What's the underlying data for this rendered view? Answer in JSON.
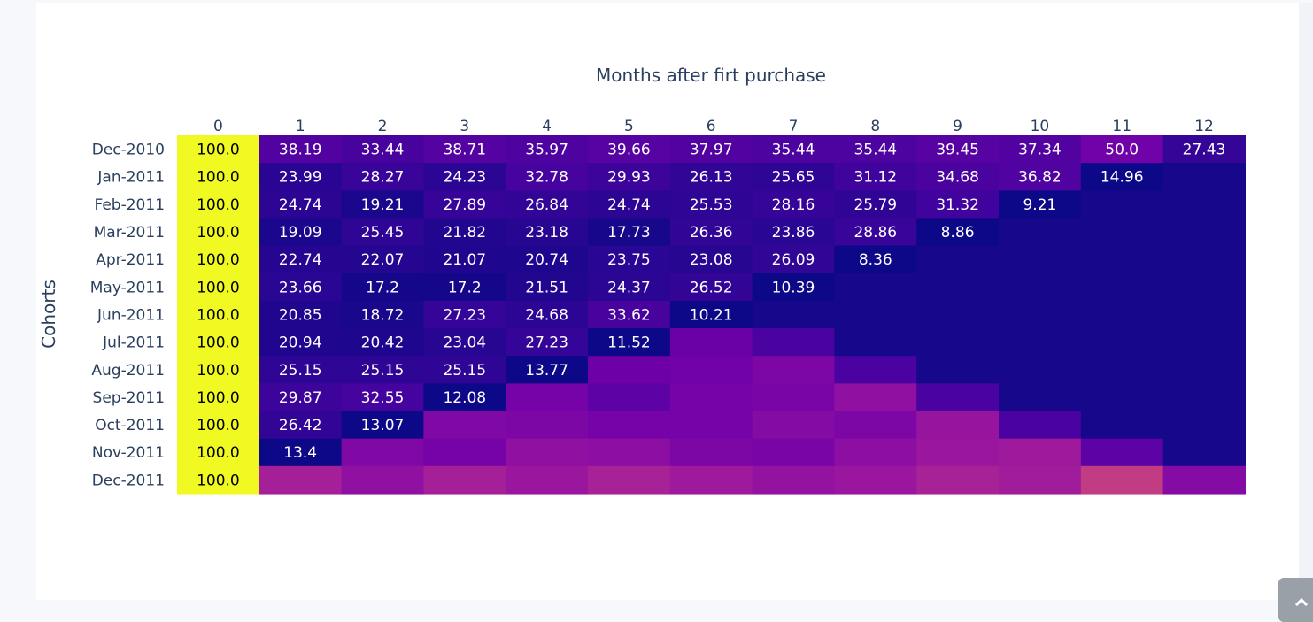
{
  "chart_data": {
    "type": "heatmap",
    "title": "Months after firt purchase",
    "xlabel": "",
    "ylabel": "Cohorts",
    "x": [
      "0",
      "1",
      "2",
      "3",
      "4",
      "5",
      "6",
      "7",
      "8",
      "9",
      "10",
      "11",
      "12"
    ],
    "y": [
      "Dec-2010",
      "Jan-2011",
      "Feb-2011",
      "Mar-2011",
      "Apr-2011",
      "May-2011",
      "Jun-2011",
      "Jul-2011",
      "Aug-2011",
      "Sep-2011",
      "Oct-2011",
      "Nov-2011",
      "Dec-2011"
    ],
    "colorscale": "plasma",
    "zrange": [
      0,
      100
    ],
    "z": [
      [
        100.0,
        38.19,
        33.44,
        38.71,
        35.97,
        39.66,
        37.97,
        35.44,
        35.44,
        39.45,
        37.34,
        50.0,
        27.43
      ],
      [
        100.0,
        23.99,
        28.27,
        24.23,
        32.78,
        29.93,
        26.13,
        25.65,
        31.12,
        34.68,
        36.82,
        14.96,
        null
      ],
      [
        100.0,
        24.74,
        19.21,
        27.89,
        26.84,
        24.74,
        25.53,
        28.16,
        25.79,
        31.32,
        9.21,
        null,
        null
      ],
      [
        100.0,
        19.09,
        25.45,
        21.82,
        23.18,
        17.73,
        26.36,
        23.86,
        28.86,
        8.86,
        null,
        null,
        null
      ],
      [
        100.0,
        22.74,
        22.07,
        21.07,
        20.74,
        23.75,
        23.08,
        26.09,
        8.36,
        null,
        null,
        null,
        null
      ],
      [
        100.0,
        23.66,
        17.2,
        17.2,
        21.51,
        24.37,
        26.52,
        10.39,
        null,
        null,
        null,
        null,
        null
      ],
      [
        100.0,
        20.85,
        18.72,
        27.23,
        24.68,
        33.62,
        10.21,
        null,
        null,
        null,
        null,
        null,
        null
      ],
      [
        100.0,
        20.94,
        20.42,
        23.04,
        27.23,
        11.52,
        null,
        null,
        null,
        null,
        null,
        null,
        null
      ],
      [
        100.0,
        25.15,
        25.15,
        25.15,
        13.77,
        null,
        null,
        null,
        null,
        null,
        null,
        null,
        null
      ],
      [
        100.0,
        29.87,
        32.55,
        12.08,
        null,
        null,
        null,
        null,
        null,
        null,
        null,
        null,
        null
      ],
      [
        100.0,
        26.42,
        13.07,
        null,
        null,
        null,
        null,
        null,
        null,
        null,
        null,
        null,
        null
      ],
      [
        100.0,
        13.4,
        null,
        null,
        null,
        null,
        null,
        null,
        null,
        null,
        null,
        null,
        null
      ],
      [
        100.0,
        null,
        null,
        null,
        null,
        null,
        null,
        null,
        null,
        null,
        null,
        null,
        null
      ]
    ],
    "empty_cell_levels": [
      [
        null,
        null,
        null,
        null,
        null,
        null,
        null,
        null,
        null,
        null,
        null,
        null,
        null
      ],
      [
        null,
        null,
        null,
        null,
        null,
        null,
        null,
        null,
        null,
        null,
        null,
        null,
        0.02
      ],
      [
        null,
        null,
        null,
        null,
        null,
        null,
        null,
        null,
        null,
        null,
        null,
        0.02,
        0.02
      ],
      [
        null,
        null,
        null,
        null,
        null,
        null,
        null,
        null,
        null,
        null,
        0.02,
        0.02,
        0.02
      ],
      [
        null,
        null,
        null,
        null,
        null,
        null,
        null,
        null,
        null,
        0.02,
        0.02,
        0.02,
        0.02
      ],
      [
        null,
        null,
        null,
        null,
        null,
        null,
        null,
        null,
        0.02,
        0.02,
        0.02,
        0.02,
        0.02
      ],
      [
        null,
        null,
        null,
        null,
        null,
        null,
        null,
        0.02,
        0.02,
        0.02,
        0.02,
        0.02,
        0.02
      ],
      [
        null,
        null,
        null,
        null,
        null,
        null,
        0.2,
        0.12,
        0.02,
        0.02,
        0.02,
        0.02,
        0.02
      ],
      [
        null,
        null,
        null,
        null,
        null,
        0.21,
        0.22,
        0.25,
        0.12,
        0.02,
        0.02,
        0.02,
        0.02
      ],
      [
        null,
        null,
        null,
        null,
        0.23,
        0.17,
        0.23,
        0.24,
        0.3,
        0.12,
        0.02,
        0.02,
        0.02
      ],
      [
        null,
        null,
        null,
        0.26,
        0.25,
        0.23,
        0.23,
        0.27,
        0.25,
        0.32,
        0.12,
        0.02,
        0.02
      ],
      [
        null,
        null,
        0.26,
        0.23,
        0.3,
        0.29,
        0.25,
        0.24,
        0.29,
        0.33,
        0.34,
        0.17,
        0.02
      ],
      [
        null,
        0.36,
        0.3,
        0.36,
        0.33,
        0.37,
        0.34,
        0.31,
        0.33,
        0.37,
        0.35,
        0.46,
        0.27
      ]
    ]
  },
  "scroll_top_button": {
    "icon": "chevron-up-icon"
  }
}
